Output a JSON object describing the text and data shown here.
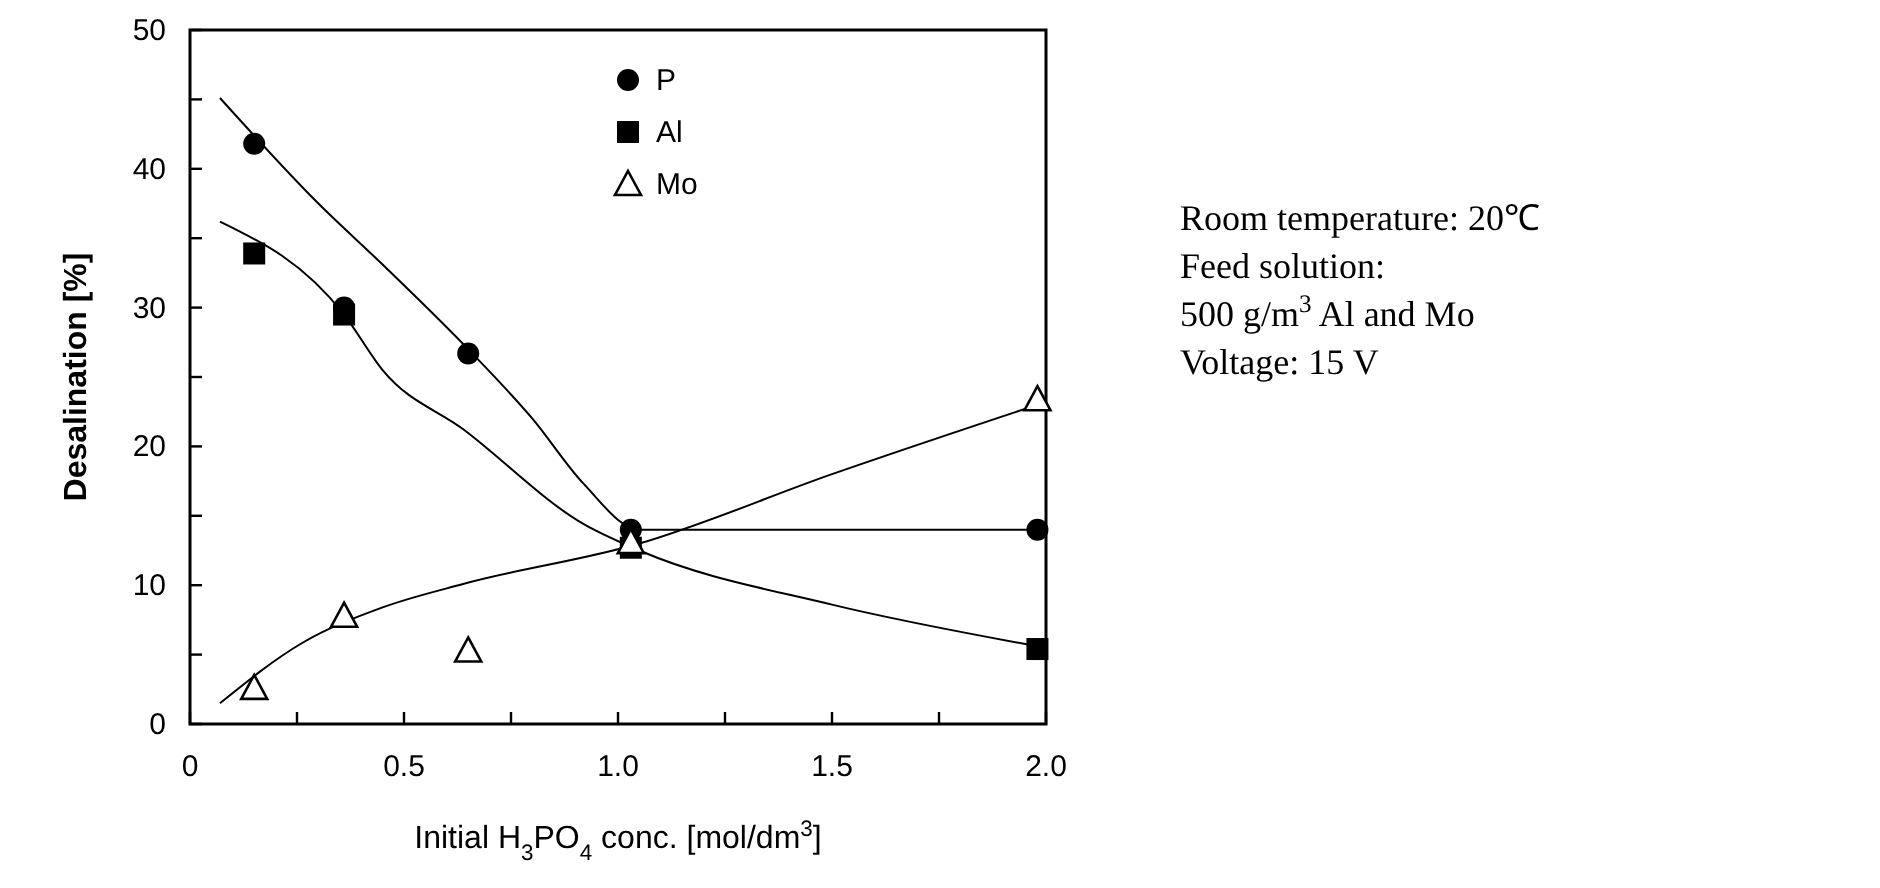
{
  "chart_data": {
    "type": "scatter",
    "xlabel": "Initial H$_{3}$PO$_{4}$ conc. [mol/dm$^{3}$]",
    "ylabel": "Desalination [%]",
    "xlim": [
      0,
      2.0
    ],
    "ylim": [
      0,
      50
    ],
    "xticks": [
      0,
      {
        "value": 0.25,
        "label": null
      },
      0.5,
      {
        "value": 0.75,
        "label": null
      },
      {
        "value": 1.0,
        "label": "1.0"
      },
      {
        "value": 1.25,
        "label": null
      },
      1.5,
      {
        "value": 1.75,
        "label": null
      },
      {
        "value": 2.0,
        "label": "2.0"
      }
    ],
    "yticks": [
      0,
      {
        "value": 5,
        "label": null
      },
      10,
      {
        "value": 15,
        "label": null
      },
      20,
      {
        "value": 25,
        "label": null
      },
      30,
      {
        "value": 35,
        "label": null
      },
      40,
      {
        "value": 45,
        "label": null
      },
      50
    ],
    "series": [
      {
        "type": "line",
        "color": "#000000",
        "marker": "none",
        "x": [
          0.07,
          0.3,
          0.45,
          0.65,
          0.8,
          0.92,
          1.05,
          1.5,
          1.98
        ],
        "values": [
          45.1,
          37.5,
          33.1,
          27,
          22,
          17.3,
          14.0,
          14.0,
          14.0
        ]
      },
      {
        "type": "line",
        "color": "#000000",
        "marker": "none",
        "x": [
          0.07,
          0.36,
          0.45,
          0.64,
          0.92,
          1.05,
          1.5,
          1.98
        ],
        "values": [
          36.2,
          29.5,
          25.5,
          21.2,
          14.4,
          12.5,
          8.6,
          5.6
        ]
      },
      {
        "type": "line",
        "color": "#000000",
        "marker": "none",
        "x": [
          0.07,
          0.26,
          0.45,
          0.64,
          1.05,
          1.5,
          1.98
        ],
        "values": [
          1.5,
          5.8,
          8.4,
          10.1,
          13.0,
          18.0,
          23.0
        ]
      },
      {
        "name": "P",
        "color": "#000000",
        "marker": "circle",
        "x": [
          0.15,
          0.36,
          0.65,
          1.03,
          1.98
        ],
        "values": [
          41.8,
          30.0,
          26.7,
          14.0,
          14.0
        ]
      },
      {
        "name": "Al",
        "color": "#000000",
        "marker": "square",
        "x": [
          0.15,
          0.36,
          1.03,
          1.98
        ],
        "values": [
          33.9,
          29.5,
          12.7,
          5.4
        ]
      },
      {
        "name": "Mo",
        "color": "#000000",
        "marker": "triangle",
        "x": [
          0.15,
          0.36,
          0.65,
          1.03,
          1.98
        ],
        "values": [
          2.6,
          7.8,
          5.3,
          13.1,
          23.4
        ]
      }
    ],
    "legend": "top",
    "annotations": [
      "Room temperature: 20℃",
      "Feed solution:",
      "500 g/m$^{3}$ Al and Mo",
      "Voltage: 15 V"
    ]
  }
}
